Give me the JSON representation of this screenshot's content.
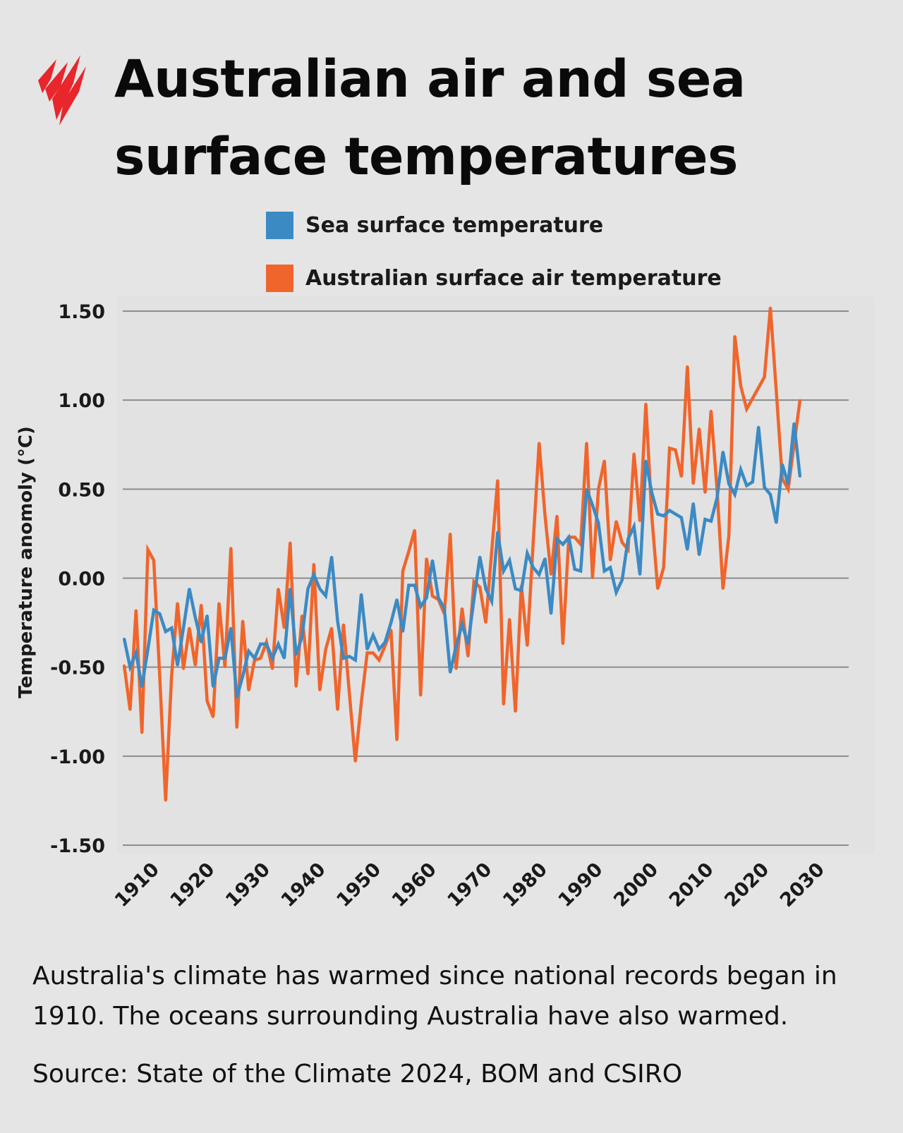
{
  "title": "Australian air and sea surface temperatures",
  "caption": "Australia's climate has warmed since national records began in 1910. The oceans surrounding Australia have also warmed.",
  "source": "Source: State of the Climate 2024, BOM and CSIRO",
  "logo": {
    "icon": "sbs-news-logo",
    "color": "#e8262c"
  },
  "chart_data": {
    "type": "line",
    "title": "",
    "xlabel": "",
    "ylabel": "Temperature anomoly (°C)",
    "ylim": [
      -1.5,
      1.5
    ],
    "xlim": [
      1910,
      2024
    ],
    "grid": "horizontal",
    "legend_position": "top",
    "y_ticks": [
      "1.50",
      "1.00",
      "0.50",
      "0.00",
      "-0.50",
      "-1.00",
      "-1.50"
    ],
    "y_tick_values": [
      1.5,
      1.0,
      0.5,
      0.0,
      -0.5,
      -1.0,
      -1.5
    ],
    "x_ticks": [
      "1910",
      "1920",
      "1930",
      "1940",
      "1950",
      "1960",
      "1970",
      "1980",
      "1990",
      "2000",
      "2010",
      "2020",
      "2030"
    ],
    "x_start": 1910,
    "series": [
      {
        "name": "Sea surface temperature",
        "color": "#3b8ac4",
        "values": [
          -0.34,
          -0.5,
          -0.42,
          -0.61,
          -0.4,
          -0.18,
          -0.2,
          -0.3,
          -0.28,
          -0.49,
          -0.28,
          -0.06,
          -0.22,
          -0.36,
          -0.21,
          -0.61,
          -0.45,
          -0.45,
          -0.28,
          -0.67,
          -0.55,
          -0.41,
          -0.45,
          -0.37,
          -0.37,
          -0.45,
          -0.37,
          -0.45,
          -0.06,
          -0.43,
          -0.33,
          -0.06,
          0.02,
          -0.06,
          -0.1,
          0.12,
          -0.24,
          -0.45,
          -0.44,
          -0.46,
          -0.09,
          -0.4,
          -0.32,
          -0.4,
          -0.36,
          -0.25,
          -0.12,
          -0.3,
          -0.04,
          -0.04,
          -0.16,
          -0.11,
          0.1,
          -0.11,
          -0.17,
          -0.53,
          -0.38,
          -0.26,
          -0.37,
          -0.12,
          0.12,
          -0.06,
          -0.13,
          0.26,
          0.04,
          0.1,
          -0.06,
          -0.07,
          0.14,
          0.06,
          0.02,
          0.11,
          -0.2,
          0.22,
          0.19,
          0.23,
          0.05,
          0.04,
          0.5,
          0.41,
          0.31,
          0.04,
          0.06,
          -0.08,
          -0.01,
          0.22,
          0.29,
          0.02,
          0.66,
          0.48,
          0.36,
          0.35,
          0.38,
          0.36,
          0.34,
          0.16,
          0.42,
          0.13,
          0.33,
          0.32,
          0.45,
          0.71,
          0.53,
          0.47,
          0.61,
          0.52,
          0.54,
          0.85,
          0.51,
          0.47,
          0.31,
          0.64,
          0.53,
          0.87,
          0.57
        ]
      },
      {
        "name": "Australian surface air temperature",
        "color": "#f0652b",
        "values": [
          -0.49,
          -0.74,
          -0.18,
          -0.87,
          0.16,
          0.1,
          -0.55,
          -1.25,
          -0.55,
          -0.14,
          -0.51,
          -0.28,
          -0.49,
          -0.15,
          -0.69,
          -0.78,
          -0.14,
          -0.5,
          0.17,
          -0.84,
          -0.24,
          -0.63,
          -0.46,
          -0.45,
          -0.36,
          -0.51,
          -0.06,
          -0.28,
          0.2,
          -0.61,
          -0.21,
          -0.54,
          0.08,
          -0.63,
          -0.4,
          -0.28,
          -0.74,
          -0.26,
          -0.65,
          -1.03,
          -0.7,
          -0.42,
          -0.42,
          -0.46,
          -0.38,
          -0.29,
          -0.91,
          0.04,
          0.15,
          0.27,
          -0.66,
          0.11,
          -0.1,
          -0.12,
          -0.2,
          0.25,
          -0.51,
          -0.17,
          -0.44,
          -0.02,
          -0.05,
          -0.25,
          0.15,
          0.55,
          -0.71,
          -0.23,
          -0.75,
          -0.04,
          -0.38,
          0.2,
          0.76,
          0.35,
          0.02,
          0.35,
          -0.37,
          0.23,
          0.23,
          0.19,
          0.76,
          0.0,
          0.5,
          0.66,
          0.1,
          0.32,
          0.2,
          0.16,
          0.7,
          0.32,
          0.98,
          0.35,
          -0.06,
          0.06,
          0.73,
          0.72,
          0.57,
          1.19,
          0.53,
          0.84,
          0.48,
          0.94,
          0.5,
          -0.06,
          0.24,
          1.36,
          1.08,
          0.95,
          1.01,
          1.07,
          1.13,
          1.52,
          1.05,
          0.56,
          0.5,
          0.75,
          1.0
        ]
      }
    ]
  }
}
